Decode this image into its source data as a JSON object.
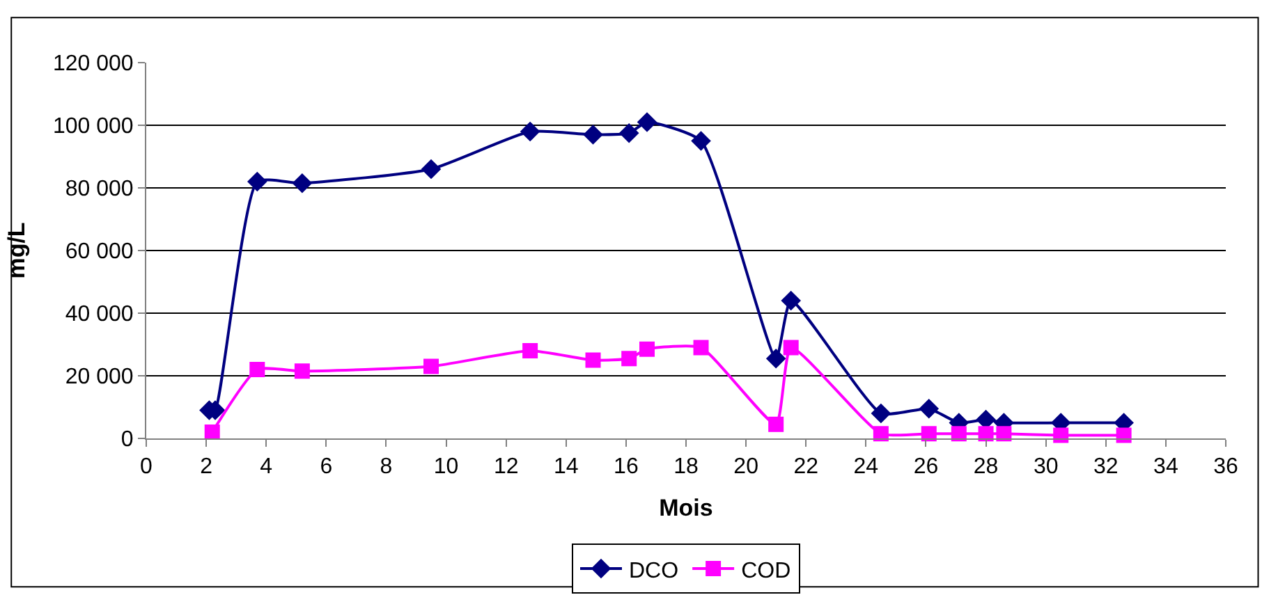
{
  "chart_data": {
    "type": "line",
    "xlabel": "Mois",
    "ylabel": "mg/L",
    "xlim": [
      0,
      36
    ],
    "xticks": [
      0,
      2,
      4,
      6,
      8,
      10,
      12,
      14,
      16,
      18,
      20,
      22,
      24,
      26,
      28,
      30,
      32,
      34,
      36
    ],
    "ylim": [
      0,
      120000
    ],
    "yticks": [
      0,
      {
        "value": 20000,
        "label": "20 000"
      },
      {
        "value": 40000,
        "label": "40 000"
      },
      {
        "value": 60000,
        "label": "60 000"
      },
      {
        "value": 80000,
        "label": "80 000"
      },
      {
        "value": 100000,
        "label": "100 000"
      },
      {
        "value": 120000,
        "label": "120 000"
      }
    ],
    "grid": "y",
    "legend": "bottom",
    "line_style": "solid",
    "series": [
      {
        "name": "DCO",
        "color": "#000080",
        "marker": "diamond",
        "x": [
          2.1,
          2.3,
          3.7,
          5.2,
          9.5,
          12.8,
          14.9,
          16.1,
          16.7,
          18.5,
          21.0,
          21.5,
          24.5,
          26.1,
          27.1,
          28.0,
          28.6,
          30.5,
          32.6
        ],
        "values": [
          9000,
          9000,
          82000,
          81500,
          86000,
          98000,
          97000,
          97500,
          101000,
          95000,
          25500,
          44000,
          8000,
          9500,
          5000,
          6000,
          5000,
          5000,
          5000
        ]
      },
      {
        "name": "COD",
        "color": "#ff00ff",
        "marker": "square",
        "x": [
          2.2,
          3.7,
          5.2,
          9.5,
          12.8,
          14.9,
          16.1,
          16.7,
          18.5,
          21.0,
          21.5,
          24.5,
          26.1,
          27.1,
          28.0,
          28.6,
          30.5,
          32.6
        ],
        "values": [
          2000,
          22000,
          21500,
          23000,
          28000,
          25000,
          25500,
          28500,
          29000,
          4500,
          29000,
          1500,
          1500,
          1500,
          1500,
          1500,
          1000,
          1000
        ]
      }
    ]
  }
}
